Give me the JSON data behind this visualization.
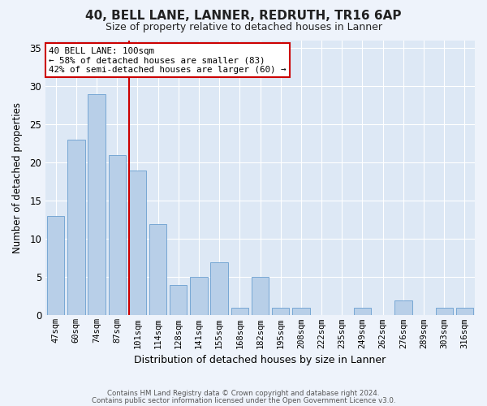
{
  "title1": "40, BELL LANE, LANNER, REDRUTH, TR16 6AP",
  "title2": "Size of property relative to detached houses in Lanner",
  "xlabel": "Distribution of detached houses by size in Lanner",
  "ylabel": "Number of detached properties",
  "categories": [
    "47sqm",
    "60sqm",
    "74sqm",
    "87sqm",
    "101sqm",
    "114sqm",
    "128sqm",
    "141sqm",
    "155sqm",
    "168sqm",
    "182sqm",
    "195sqm",
    "208sqm",
    "222sqm",
    "235sqm",
    "249sqm",
    "262sqm",
    "276sqm",
    "289sqm",
    "303sqm",
    "316sqm"
  ],
  "values": [
    13,
    23,
    29,
    21,
    19,
    12,
    4,
    5,
    7,
    1,
    5,
    1,
    1,
    0,
    0,
    1,
    0,
    2,
    0,
    1,
    1
  ],
  "bar_color": "#b8cfe8",
  "bar_edge_color": "#6a9fd0",
  "vline_color": "#cc0000",
  "vline_pos": 3.575,
  "annotation_line1": "40 BELL LANE: 100sqm",
  "annotation_line2": "← 58% of detached houses are smaller (83)",
  "annotation_line3": "42% of semi-detached houses are larger (60) →",
  "annotation_box_color": "#ffffff",
  "annotation_box_edge": "#cc0000",
  "ylim": [
    0,
    36
  ],
  "yticks": [
    0,
    5,
    10,
    15,
    20,
    25,
    30,
    35
  ],
  "fig_bg_color": "#eef3fb",
  "plot_bg_color": "#dde8f5",
  "grid_color": "#ffffff",
  "footer1": "Contains HM Land Registry data © Crown copyright and database right 2024.",
  "footer2": "Contains public sector information licensed under the Open Government Licence v3.0."
}
